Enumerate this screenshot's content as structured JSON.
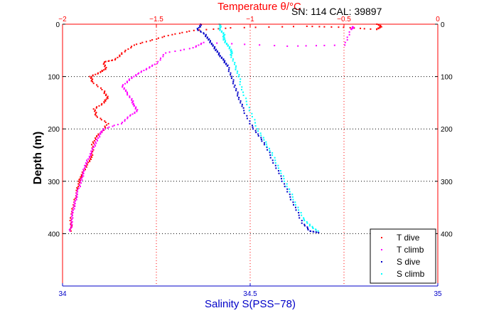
{
  "chart_data": {
    "type": "scatter",
    "title": "Temperature θ/°C",
    "annotation": "SN: 114  CAL: 39897",
    "xlabel_top": "Temperature θ/°C",
    "xlabel_bottom": "Salinity S(PSS−78)",
    "ylabel": "Depth (m)",
    "temperature_axis": {
      "range": [
        -2,
        0
      ],
      "ticks": [
        -2,
        -1.5,
        -1,
        -0.5,
        0
      ],
      "tick_labels": [
        "−2",
        "−1.5",
        "−1",
        "−0.5",
        "0"
      ],
      "color": "#ff0000"
    },
    "salinity_axis": {
      "range": [
        34,
        35
      ],
      "ticks": [
        34,
        34.5,
        35
      ],
      "tick_labels": [
        "34",
        "34.5",
        "35"
      ],
      "color": "#0000c8"
    },
    "depth_axis": {
      "range": [
        0,
        500
      ],
      "reversed": true,
      "ticks": [
        0,
        100,
        200,
        300,
        400
      ],
      "tick_labels": [
        "0",
        "100",
        "200",
        "300",
        "400"
      ]
    },
    "grid": true,
    "legend_position": "bottom-right",
    "series": [
      {
        "name": "T dive",
        "axis": "temperature",
        "color": "#ff0000",
        "x": [
          -0.32,
          -0.3,
          -0.33,
          -0.5,
          -0.7,
          -1.1,
          -1.3,
          -1.42,
          -1.52,
          -1.62,
          -1.68,
          -1.72,
          -1.78,
          -1.77,
          -1.8,
          -1.85,
          -1.84,
          -1.78,
          -1.76,
          -1.78,
          -1.83,
          -1.82,
          -1.76,
          -1.79,
          -1.82,
          -1.84,
          -1.84,
          -1.86,
          -1.88,
          -1.9,
          -1.91,
          -1.92,
          -1.93,
          -1.94,
          -1.95,
          -1.955,
          -1.955
        ],
        "y": [
          0,
          5,
          10,
          6,
          4,
          7,
          12,
          20,
          30,
          40,
          55,
          68,
          72,
          85,
          92,
          100,
          110,
          128,
          140,
          150,
          162,
          175,
          190,
          205,
          215,
          230,
          250,
          262,
          275,
          290,
          300,
          315,
          330,
          345,
          360,
          375,
          395
        ]
      },
      {
        "name": "T climb",
        "axis": "temperature",
        "color": "#ff00ff",
        "x": [
          -0.45,
          -0.46,
          -0.5,
          -0.8,
          -1.25,
          -1.3,
          -1.45,
          -1.5,
          -1.55,
          -1.6,
          -1.64,
          -1.68,
          -1.66,
          -1.63,
          -1.62,
          -1.6,
          -1.64,
          -1.69,
          -1.78,
          -1.8,
          -1.82,
          -1.84,
          -1.86,
          -1.88,
          -1.89,
          -1.9,
          -1.92,
          -1.93,
          -1.94,
          -1.95,
          -1.95,
          -1.96
        ],
        "y": [
          5,
          10,
          40,
          42,
          35,
          45,
          55,
          75,
          85,
          95,
          105,
          118,
          130,
          145,
          155,
          165,
          175,
          190,
          200,
          210,
          225,
          240,
          255,
          270,
          285,
          300,
          320,
          335,
          350,
          365,
          380,
          395
        ]
      },
      {
        "name": "S dive",
        "axis": "salinity",
        "color": "#0000c8",
        "x": [
          34.37,
          34.36,
          34.38,
          34.39,
          34.4,
          34.41,
          34.42,
          34.43,
          34.44,
          34.45,
          34.46,
          34.47,
          34.48,
          34.5,
          34.52,
          34.54,
          34.56,
          34.58,
          34.6,
          34.62,
          34.64,
          34.66,
          34.68
        ],
        "y": [
          0,
          10,
          20,
          30,
          40,
          50,
          60,
          70,
          80,
          100,
          120,
          140,
          160,
          190,
          210,
          230,
          260,
          290,
          320,
          350,
          380,
          395,
          398
        ]
      },
      {
        "name": "S climb",
        "axis": "salinity",
        "color": "#00ffff",
        "x": [
          34.42,
          34.42,
          34.43,
          34.43,
          34.44,
          34.45,
          34.45,
          34.46,
          34.47,
          34.48,
          34.5,
          34.52,
          34.54,
          34.56,
          34.58,
          34.6,
          34.62,
          34.64,
          34.66,
          34.68
        ],
        "y": [
          0,
          10,
          20,
          30,
          40,
          50,
          60,
          80,
          100,
          130,
          165,
          200,
          225,
          250,
          280,
          310,
          340,
          370,
          385,
          395
        ]
      }
    ]
  }
}
